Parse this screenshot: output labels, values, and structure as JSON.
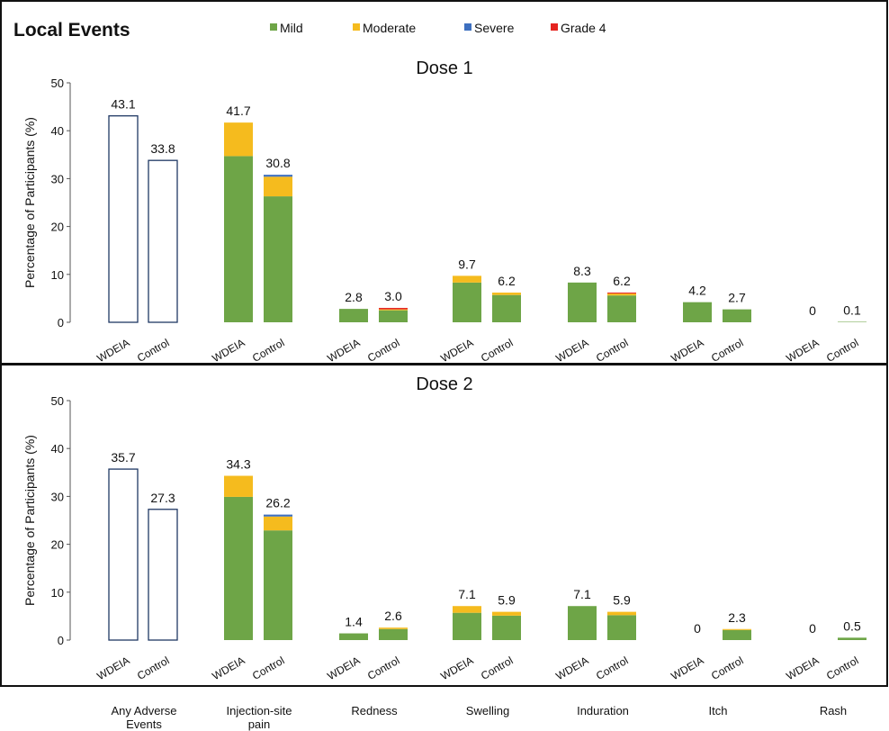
{
  "header": {
    "title": "Local Events"
  },
  "legend": [
    {
      "name": "Mild",
      "color": "#6ea547"
    },
    {
      "name": "Moderate",
      "color": "#f5bb1e"
    },
    {
      "name": "Severe",
      "color": "#3d6fbf"
    },
    {
      "name": "Grade 4",
      "color": "#e52420"
    }
  ],
  "group_bar_labels": [
    "WDEIA",
    "Control"
  ],
  "categories": [
    [
      "Any Adverse",
      "Events"
    ],
    [
      "Injection-site",
      "pain"
    ],
    [
      "Redness"
    ],
    [
      "Swelling"
    ],
    [
      "Induration"
    ],
    [
      "Itch"
    ],
    [
      "Rash"
    ]
  ],
  "chart_data": [
    {
      "type": "bar",
      "title": "Dose 1",
      "ylabel": "Percentage of Participants  (%)",
      "ylim": [
        0,
        50
      ],
      "yticks": [
        0,
        10,
        20,
        30,
        40,
        50
      ],
      "stacked": true,
      "categories": [
        "Any Adverse Events",
        "Injection-site pain",
        "Redness",
        "Swelling",
        "Induration",
        "Itch",
        "Rash"
      ],
      "groups": [
        "WDEIA",
        "Control"
      ],
      "bars": [
        [
          {
            "total": 43.1,
            "label": "43.1",
            "outline": true
          },
          {
            "total": 33.8,
            "label": "33.8",
            "outline": true
          }
        ],
        [
          {
            "label": "41.7",
            "mild": 34.7,
            "moderate": 7.0,
            "severe": 0,
            "grade4": 0
          },
          {
            "label": "30.8",
            "mild": 26.3,
            "moderate": 4.1,
            "severe": 0.4,
            "grade4": 0
          }
        ],
        [
          {
            "label": "2.8",
            "mild": 2.8,
            "moderate": 0,
            "severe": 0,
            "grade4": 0
          },
          {
            "label": "3.0",
            "mild": 2.5,
            "moderate": 0.2,
            "severe": 0,
            "grade4": 0.3
          }
        ],
        [
          {
            "label": "9.7",
            "mild": 8.3,
            "moderate": 1.4,
            "severe": 0,
            "grade4": 0
          },
          {
            "label": "6.2",
            "mild": 5.7,
            "moderate": 0.5,
            "severe": 0,
            "grade4": 0
          }
        ],
        [
          {
            "label": "8.3",
            "mild": 8.3,
            "moderate": 0,
            "severe": 0,
            "grade4": 0
          },
          {
            "label": "6.2",
            "mild": 5.6,
            "moderate": 0.4,
            "severe": 0,
            "grade4": 0.2
          }
        ],
        [
          {
            "label": "4.2",
            "mild": 4.2,
            "moderate": 0,
            "severe": 0,
            "grade4": 0
          },
          {
            "label": "2.7",
            "mild": 2.7,
            "moderate": 0,
            "severe": 0,
            "grade4": 0
          }
        ],
        [
          {
            "label": "0",
            "mild": 0,
            "moderate": 0,
            "severe": 0,
            "grade4": 0
          },
          {
            "label": "0.1",
            "mild": 0.1,
            "moderate": 0,
            "severe": 0,
            "grade4": 0
          }
        ]
      ]
    },
    {
      "type": "bar",
      "title": "Dose 2",
      "ylabel": "Percentage of Participants  (%)",
      "ylim": [
        0,
        50
      ],
      "yticks": [
        0,
        10,
        20,
        30,
        40,
        50
      ],
      "stacked": true,
      "categories": [
        "Any Adverse Events",
        "Injection-site pain",
        "Redness",
        "Swelling",
        "Induration",
        "Itch",
        "Rash"
      ],
      "groups": [
        "WDEIA",
        "Control"
      ],
      "bars": [
        [
          {
            "total": 35.7,
            "label": "35.7",
            "outline": true
          },
          {
            "total": 27.3,
            "label": "27.3",
            "outline": true
          }
        ],
        [
          {
            "label": "34.3",
            "mild": 29.9,
            "moderate": 4.4,
            "severe": 0,
            "grade4": 0
          },
          {
            "label": "26.2",
            "mild": 22.9,
            "moderate": 2.9,
            "severe": 0.4,
            "grade4": 0
          }
        ],
        [
          {
            "label": "1.4",
            "mild": 1.4,
            "moderate": 0,
            "severe": 0,
            "grade4": 0
          },
          {
            "label": "2.6",
            "mild": 2.3,
            "moderate": 0.3,
            "severe": 0,
            "grade4": 0
          }
        ],
        [
          {
            "label": "7.1",
            "mild": 5.7,
            "moderate": 1.4,
            "severe": 0,
            "grade4": 0
          },
          {
            "label": "5.9",
            "mild": 5.1,
            "moderate": 0.8,
            "severe": 0,
            "grade4": 0
          }
        ],
        [
          {
            "label": "7.1",
            "mild": 7.1,
            "moderate": 0,
            "severe": 0,
            "grade4": 0
          },
          {
            "label": "5.9",
            "mild": 5.2,
            "moderate": 0.7,
            "severe": 0,
            "grade4": 0
          }
        ],
        [
          {
            "label": "0",
            "mild": 0,
            "moderate": 0,
            "severe": 0,
            "grade4": 0
          },
          {
            "label": "2.3",
            "mild": 2.1,
            "moderate": 0.2,
            "severe": 0,
            "grade4": 0
          }
        ],
        [
          {
            "label": "0",
            "mild": 0,
            "moderate": 0,
            "severe": 0,
            "grade4": 0
          },
          {
            "label": "0.5",
            "mild": 0.5,
            "moderate": 0,
            "severe": 0,
            "grade4": 0
          }
        ]
      ]
    }
  ]
}
